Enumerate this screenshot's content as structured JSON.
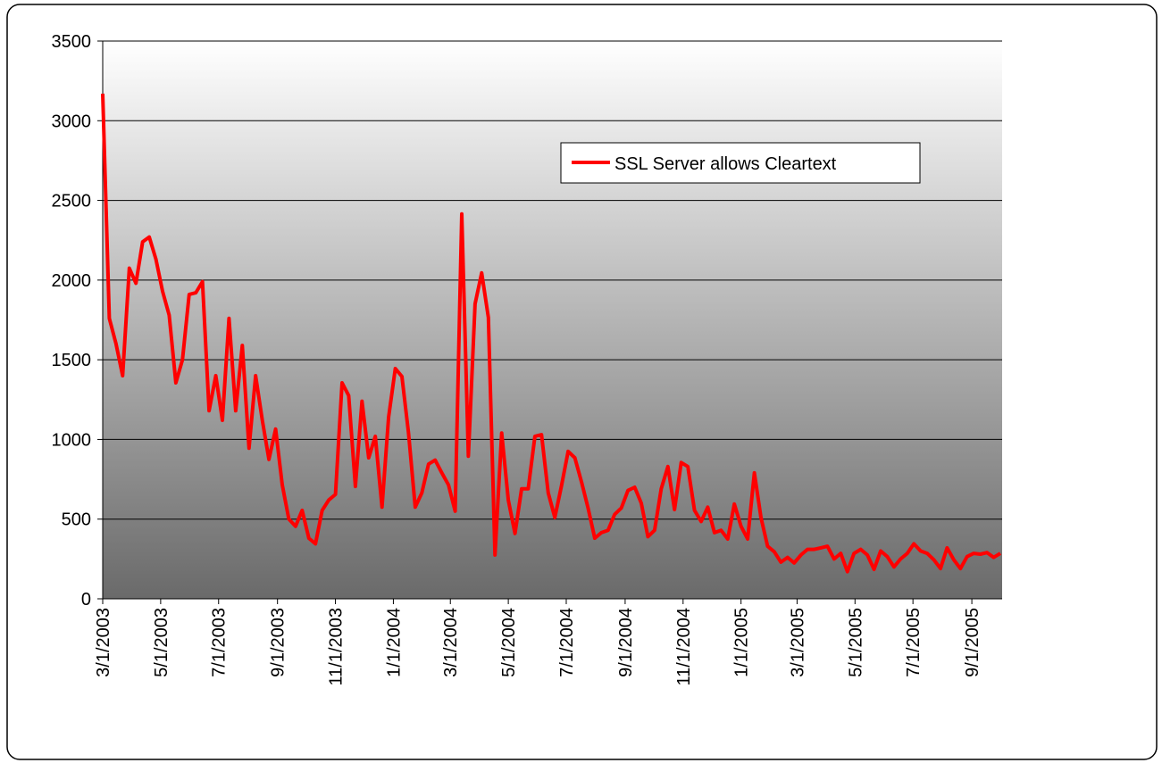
{
  "chart_data": {
    "type": "line",
    "x": [
      "3/1/2003",
      "3/8/2003",
      "3/15/2003",
      "3/22/2003",
      "3/29/2003",
      "4/5/2003",
      "4/12/2003",
      "4/19/2003",
      "4/26/2003",
      "5/3/2003",
      "5/10/2003",
      "5/17/2003",
      "5/24/2003",
      "5/31/2003",
      "6/7/2003",
      "6/14/2003",
      "6/21/2003",
      "6/28/2003",
      "7/5/2003",
      "7/12/2003",
      "7/19/2003",
      "7/26/2003",
      "8/2/2003",
      "8/9/2003",
      "8/16/2003",
      "8/23/2003",
      "8/30/2003",
      "9/6/2003",
      "9/13/2003",
      "9/20/2003",
      "9/27/2003",
      "10/4/2003",
      "10/11/2003",
      "10/18/2003",
      "10/25/2003",
      "11/1/2003",
      "11/8/2003",
      "11/15/2003",
      "11/22/2003",
      "11/29/2003",
      "12/6/2003",
      "12/13/2003",
      "12/20/2003",
      "12/27/2003",
      "1/3/2004",
      "1/10/2004",
      "1/17/2004",
      "1/24/2004",
      "1/31/2004",
      "2/7/2004",
      "2/14/2004",
      "2/21/2004",
      "2/28/2004",
      "3/6/2004",
      "3/13/2004",
      "3/20/2004",
      "3/27/2004",
      "4/3/2004",
      "4/10/2004",
      "4/17/2004",
      "4/24/2004",
      "5/1/2004",
      "5/8/2004",
      "5/15/2004",
      "5/22/2004",
      "5/29/2004",
      "6/5/2004",
      "6/12/2004",
      "6/19/2004",
      "6/26/2004",
      "7/3/2004",
      "7/10/2004",
      "7/17/2004",
      "7/24/2004",
      "7/31/2004",
      "8/7/2004",
      "8/14/2004",
      "8/21/2004",
      "8/28/2004",
      "9/4/2004",
      "9/11/2004",
      "9/18/2004",
      "9/25/2004",
      "10/2/2004",
      "10/9/2004",
      "10/16/2004",
      "10/23/2004",
      "10/30/2004",
      "11/6/2004",
      "11/13/2004",
      "11/20/2004",
      "11/27/2004",
      "12/4/2004",
      "12/11/2004",
      "12/18/2004",
      "12/25/2004",
      "1/1/2005",
      "1/8/2005",
      "1/15/2005",
      "1/22/2005",
      "1/29/2005",
      "2/5/2005",
      "2/12/2005",
      "2/19/2005",
      "2/26/2005",
      "3/5/2005",
      "3/12/2005",
      "3/19/2005",
      "3/26/2005",
      "4/2/2005",
      "4/9/2005",
      "4/16/2005",
      "4/23/2005",
      "4/30/2005",
      "5/7/2005",
      "5/14/2005",
      "5/21/2005",
      "5/28/2005",
      "6/4/2005",
      "6/11/2005",
      "6/18/2005",
      "6/25/2005",
      "7/2/2005",
      "7/9/2005",
      "7/16/2005",
      "7/23/2005",
      "7/30/2005",
      "8/6/2005",
      "8/13/2005",
      "8/20/2005",
      "8/27/2005",
      "9/3/2005",
      "9/10/2005",
      "9/17/2005",
      "9/24/2005",
      "10/1/2005"
    ],
    "series": [
      {
        "name": "SSL Server allows Cleartext",
        "color": "#ff0000",
        "values": [
          3170,
          1760,
          1600,
          1400,
          2075,
          1980,
          2240,
          2270,
          2130,
          1930,
          1780,
          1355,
          1500,
          1910,
          1920,
          1990,
          1180,
          1400,
          1120,
          1760,
          1180,
          1590,
          945,
          1400,
          1120,
          875,
          1065,
          715,
          500,
          455,
          555,
          380,
          345,
          555,
          620,
          655,
          1355,
          1275,
          705,
          1240,
          885,
          1020,
          575,
          1140,
          1445,
          1395,
          1040,
          575,
          665,
          845,
          870,
          790,
          715,
          550,
          2415,
          895,
          1850,
          2045,
          1765,
          275,
          1040,
          620,
          410,
          690,
          690,
          1020,
          1030,
          665,
          510,
          710,
          925,
          885,
          735,
          570,
          380,
          415,
          430,
          530,
          570,
          680,
          700,
          600,
          390,
          430,
          690,
          830,
          560,
          855,
          830,
          555,
          485,
          575,
          415,
          430,
          375,
          595,
          455,
          375,
          790,
          510,
          330,
          295,
          230,
          260,
          225,
          275,
          310,
          310,
          320,
          330,
          250,
          285,
          170,
          285,
          310,
          275,
          185,
          300,
          265,
          200,
          250,
          285,
          345,
          300,
          285,
          245,
          190,
          320,
          245,
          190,
          265,
          285,
          280,
          290,
          260,
          285
        ]
      }
    ],
    "xlim": [
      "3/1/2003",
      "10/1/2005"
    ],
    "xticks": [
      "3/1/2003",
      "5/1/2003",
      "7/1/2003",
      "9/1/2003",
      "11/1/2003",
      "1/1/2004",
      "3/1/2004",
      "5/1/2004",
      "7/1/2004",
      "9/1/2004",
      "11/1/2004",
      "1/1/2005",
      "3/1/2005",
      "5/1/2005",
      "7/1/2005",
      "9/1/2005"
    ],
    "ylim": [
      0,
      3500
    ],
    "yticks": [
      0,
      500,
      1000,
      1500,
      2000,
      2500,
      3000,
      3500
    ],
    "grid": true
  }
}
